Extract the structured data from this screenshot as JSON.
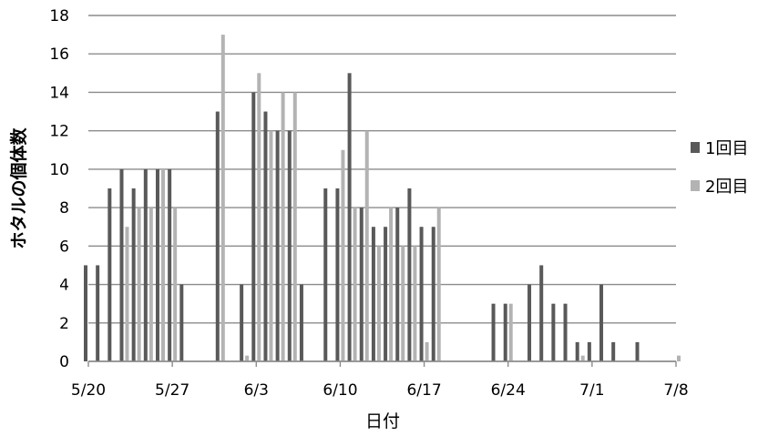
{
  "chart_data": {
    "type": "bar",
    "title": "",
    "xlabel": "日付",
    "ylabel": "ホタルの個体数",
    "ylim": [
      0,
      18
    ],
    "yticks": [
      "0",
      "2",
      "4",
      "6",
      "8",
      "10",
      "12",
      "14",
      "16",
      "18"
    ],
    "xtick_labels": [
      "5/20",
      "5/27",
      "6/3",
      "6/10",
      "6/17",
      "6/24",
      "7/1",
      "7/8"
    ],
    "grid": true,
    "legend_position": "right",
    "series": [
      {
        "name": "1回目",
        "color": "#595959",
        "points": [
          {
            "x": "5/20",
            "y": 5
          },
          {
            "x": "5/21",
            "y": 5
          },
          {
            "x": "5/22",
            "y": 9
          },
          {
            "x": "5/23",
            "y": 10
          },
          {
            "x": "5/24",
            "y": 9
          },
          {
            "x": "5/25",
            "y": 10
          },
          {
            "x": "5/26",
            "y": 10
          },
          {
            "x": "5/27",
            "y": 10
          },
          {
            "x": "5/28",
            "y": 4
          },
          {
            "x": "5/31",
            "y": 13
          },
          {
            "x": "6/2",
            "y": 4
          },
          {
            "x": "6/3",
            "y": 14
          },
          {
            "x": "6/4",
            "y": 13
          },
          {
            "x": "6/5",
            "y": 12
          },
          {
            "x": "6/6",
            "y": 12
          },
          {
            "x": "6/7",
            "y": 4
          },
          {
            "x": "6/9",
            "y": 9
          },
          {
            "x": "6/10",
            "y": 9
          },
          {
            "x": "6/11",
            "y": 15
          },
          {
            "x": "6/12",
            "y": 8
          },
          {
            "x": "6/13",
            "y": 7
          },
          {
            "x": "6/14",
            "y": 7
          },
          {
            "x": "6/15",
            "y": 8
          },
          {
            "x": "6/16",
            "y": 9
          },
          {
            "x": "6/17",
            "y": 7
          },
          {
            "x": "6/18",
            "y": 7
          },
          {
            "x": "6/23",
            "y": 3
          },
          {
            "x": "6/24",
            "y": 3
          },
          {
            "x": "6/26",
            "y": 4
          },
          {
            "x": "6/27",
            "y": 5
          },
          {
            "x": "6/28",
            "y": 3
          },
          {
            "x": "6/29",
            "y": 3
          },
          {
            "x": "6/30",
            "y": 1
          },
          {
            "x": "7/1",
            "y": 1
          },
          {
            "x": "7/2",
            "y": 4
          },
          {
            "x": "7/3",
            "y": 1
          },
          {
            "x": "7/5",
            "y": 1
          }
        ]
      },
      {
        "name": "2回目",
        "color": "#b3b3b3",
        "points": [
          {
            "x": "5/23",
            "y": 7
          },
          {
            "x": "5/24",
            "y": 8
          },
          {
            "x": "5/25",
            "y": 8
          },
          {
            "x": "5/26",
            "y": 10
          },
          {
            "x": "5/27",
            "y": 8
          },
          {
            "x": "5/31",
            "y": 17
          },
          {
            "x": "6/2",
            "y": 0.3
          },
          {
            "x": "6/3",
            "y": 15
          },
          {
            "x": "6/4",
            "y": 12
          },
          {
            "x": "6/5",
            "y": 14
          },
          {
            "x": "6/6",
            "y": 14
          },
          {
            "x": "6/10",
            "y": 11
          },
          {
            "x": "6/11",
            "y": 8
          },
          {
            "x": "6/12",
            "y": 12
          },
          {
            "x": "6/13",
            "y": 6
          },
          {
            "x": "6/14",
            "y": 8
          },
          {
            "x": "6/15",
            "y": 6
          },
          {
            "x": "6/16",
            "y": 6
          },
          {
            "x": "6/17",
            "y": 1
          },
          {
            "x": "6/18",
            "y": 8
          },
          {
            "x": "6/24",
            "y": 3
          },
          {
            "x": "6/30",
            "y": 0.3
          },
          {
            "x": "7/8",
            "y": 0.3
          }
        ]
      }
    ]
  }
}
